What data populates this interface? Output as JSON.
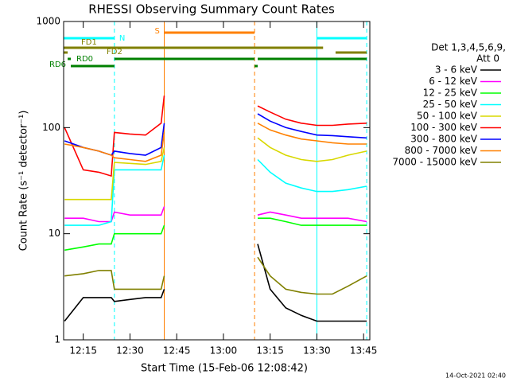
{
  "chart_data": {
    "type": "line",
    "title": "RHESSI Observing Summary Count Rates",
    "xlabel": "Start Time (15-Feb-06 12:08:42)",
    "ylabel": "Count Rate (s⁻¹ detector⁻¹)",
    "footer": "14-Oct-2021 02:40",
    "legend_header": [
      "Det 1,3,4,5,6,9,",
      "Att 0"
    ],
    "log_y": true,
    "ylim": [
      1,
      1000
    ],
    "yticks": [
      1,
      10,
      100,
      1000
    ],
    "xlim": [
      "12:08:42",
      "13:47:00"
    ],
    "xticks": [
      "12:15",
      "12:30",
      "12:45",
      "13:00",
      "13:15",
      "13:30",
      "13:45"
    ],
    "x": [
      "12:09",
      "12:15",
      "12:20",
      "12:24",
      "12:25",
      "12:30",
      "12:35",
      "12:40",
      "12:41",
      "12:50",
      "13:11",
      "13:15",
      "13:20",
      "13:25",
      "13:30",
      "13:35",
      "13:40",
      "13:46"
    ],
    "series": [
      {
        "name": "3 - 6 keV",
        "color": "#000000",
        "values": [
          1.5,
          2.5,
          2.5,
          2.5,
          2.3,
          2.4,
          2.5,
          2.5,
          3,
          null,
          8,
          3,
          2,
          1.7,
          1.5,
          1.5,
          1.5,
          1.5
        ]
      },
      {
        "name": "6 - 12 keV",
        "color": "#ff00ff",
        "values": [
          14,
          14,
          13,
          13,
          16,
          15,
          15,
          15,
          18,
          null,
          15,
          16,
          15,
          14,
          14,
          14,
          14,
          13
        ]
      },
      {
        "name": "12 - 25 keV",
        "color": "#00ff00",
        "values": [
          7,
          7.5,
          8,
          8,
          10,
          10,
          10,
          10,
          12,
          null,
          14,
          14,
          13,
          12,
          12,
          12,
          12,
          12
        ]
      },
      {
        "name": "25 - 50 keV",
        "color": "#00ffff",
        "values": [
          12,
          12,
          12,
          13,
          40,
          40,
          40,
          40,
          55,
          null,
          50,
          38,
          30,
          27,
          25,
          25,
          26,
          28
        ]
      },
      {
        "name": "50 - 100 keV",
        "color": "#d8d800",
        "values": [
          21,
          21,
          21,
          21,
          47,
          46,
          45,
          48,
          65,
          null,
          80,
          65,
          55,
          50,
          48,
          50,
          55,
          60
        ]
      },
      {
        "name": "100 - 300 keV",
        "color": "#ff0000",
        "values": [
          100,
          40,
          38,
          35,
          90,
          87,
          85,
          110,
          200,
          null,
          160,
          140,
          120,
          110,
          105,
          105,
          108,
          110
        ]
      },
      {
        "name": "300 - 800 keV",
        "color": "#0000ff",
        "values": [
          75,
          65,
          60,
          55,
          60,
          57,
          55,
          65,
          110,
          null,
          135,
          115,
          100,
          92,
          85,
          84,
          82,
          80
        ]
      },
      {
        "name": "800 - 7000 keV",
        "color": "#ff8000",
        "values": [
          70,
          65,
          60,
          55,
          52,
          50,
          48,
          55,
          90,
          null,
          110,
          95,
          85,
          78,
          75,
          72,
          70,
          70
        ]
      },
      {
        "name": "7000 - 15000 keV",
        "color": "#808000",
        "values": [
          4,
          4.2,
          4.5,
          4.5,
          3,
          3,
          3,
          3,
          4,
          null,
          6,
          4,
          3,
          2.8,
          2.7,
          2.7,
          3.2,
          4
        ]
      }
    ],
    "vlines": [
      {
        "x": "12:08:42",
        "color": "#00ffff",
        "dashed": false
      },
      {
        "x": "12:25",
        "color": "#00ffff",
        "dashed": true
      },
      {
        "x": "12:41",
        "color": "#ff8000",
        "dashed": false
      },
      {
        "x": "13:10",
        "color": "#ff8000",
        "dashed": true
      },
      {
        "x": "13:30",
        "color": "#00ffff",
        "dashed": false
      },
      {
        "x": "13:46",
        "color": "#00ffff",
        "dashed": true
      }
    ],
    "flags": [
      {
        "label": "N",
        "color": "#00ffff",
        "spans": [
          [
            "12:08:42",
            "12:25"
          ],
          [
            "13:30",
            "13:46"
          ]
        ]
      },
      {
        "label": "S",
        "color": "#ff8000",
        "spans": [
          [
            "12:41",
            "13:10"
          ]
        ]
      },
      {
        "label": "FD1",
        "color": "#808000",
        "spans": [
          [
            "12:08:42",
            "13:32"
          ]
        ]
      },
      {
        "label": "FD2",
        "color": "#808000",
        "spans": [
          [
            "12:08:42",
            "12:10"
          ],
          [
            "13:36",
            "13:46"
          ]
        ]
      },
      {
        "label": "RD0",
        "color": "#008000",
        "spans": [
          [
            "12:10",
            "12:11"
          ],
          [
            "12:25",
            "13:10"
          ],
          [
            "13:11",
            "13:46"
          ]
        ]
      },
      {
        "label": "RD6",
        "color": "#008000",
        "spans": [
          [
            "12:11",
            "12:25"
          ],
          [
            "13:10",
            "13:11"
          ]
        ]
      }
    ]
  }
}
